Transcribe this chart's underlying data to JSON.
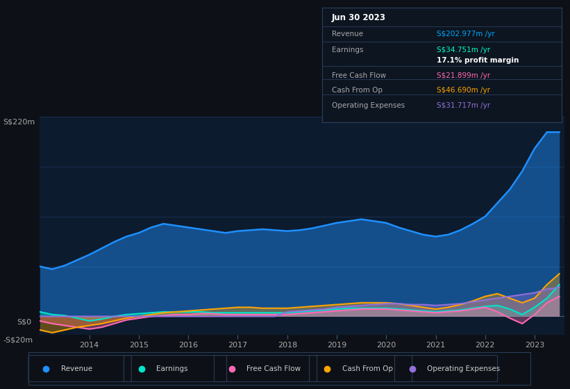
{
  "bg_color": "#0d1117",
  "plot_bg_color": "#0d1b2e",
  "grid_color": "#1e3a5f",
  "title_box": {
    "date": "Jun 30 2023",
    "rows": [
      {
        "label": "Revenue",
        "value": "S$202.977m /yr",
        "value_color": "#00aaff"
      },
      {
        "label": "Earnings",
        "value": "S$34.751m /yr",
        "value_color": "#00ffcc"
      },
      {
        "label": "",
        "value": "17.1% profit margin",
        "value_color": "#ffffff"
      },
      {
        "label": "Free Cash Flow",
        "value": "S$21.899m /yr",
        "value_color": "#ff69b4"
      },
      {
        "label": "Cash From Op",
        "value": "S$46.690m /yr",
        "value_color": "#ffa500"
      },
      {
        "label": "Operating Expenses",
        "value": "S$31.717m /yr",
        "value_color": "#9370db"
      }
    ]
  },
  "years": [
    2013.0,
    2013.25,
    2013.5,
    2013.75,
    2014.0,
    2014.25,
    2014.5,
    2014.75,
    2015.0,
    2015.25,
    2015.5,
    2015.75,
    2016.0,
    2016.25,
    2016.5,
    2016.75,
    2017.0,
    2017.25,
    2017.5,
    2017.75,
    2018.0,
    2018.25,
    2018.5,
    2018.75,
    2019.0,
    2019.25,
    2019.5,
    2019.75,
    2020.0,
    2020.25,
    2020.5,
    2020.75,
    2021.0,
    2021.25,
    2021.5,
    2021.75,
    2022.0,
    2022.25,
    2022.5,
    2022.75,
    2023.0,
    2023.25,
    2023.5
  ],
  "revenue": [
    55,
    52,
    56,
    62,
    68,
    75,
    82,
    88,
    92,
    98,
    102,
    100,
    98,
    96,
    94,
    92,
    94,
    95,
    96,
    95,
    94,
    95,
    97,
    100,
    103,
    105,
    107,
    105,
    103,
    98,
    94,
    90,
    88,
    90,
    95,
    102,
    110,
    125,
    140,
    160,
    185,
    203,
    203
  ],
  "earnings": [
    5,
    2,
    1,
    -2,
    -5,
    -3,
    0,
    2,
    3,
    4,
    5,
    5,
    5,
    5,
    4,
    4,
    4,
    4,
    4,
    4,
    4,
    5,
    6,
    7,
    8,
    9,
    9,
    9,
    9,
    8,
    7,
    6,
    5,
    6,
    7,
    9,
    11,
    12,
    8,
    2,
    10,
    20,
    35
  ],
  "free_cash_flow": [
    -5,
    -8,
    -10,
    -12,
    -14,
    -12,
    -8,
    -4,
    -2,
    0,
    1,
    2,
    2,
    3,
    3,
    2,
    2,
    2,
    2,
    2,
    2,
    3,
    4,
    5,
    6,
    7,
    8,
    8,
    8,
    7,
    6,
    5,
    4,
    5,
    6,
    8,
    10,
    5,
    -2,
    -8,
    2,
    15,
    22
  ],
  "cash_from_op": [
    -15,
    -18,
    -15,
    -12,
    -10,
    -8,
    -5,
    -2,
    0,
    2,
    4,
    5,
    6,
    7,
    8,
    9,
    10,
    10,
    9,
    9,
    9,
    10,
    11,
    12,
    13,
    14,
    15,
    15,
    15,
    14,
    12,
    10,
    8,
    10,
    13,
    17,
    22,
    25,
    20,
    15,
    20,
    35,
    47
  ],
  "operating_expenses": [
    0,
    0,
    0,
    0,
    0,
    0,
    0,
    0,
    0,
    0,
    0,
    0,
    0,
    0,
    0,
    0,
    0,
    0,
    0,
    0,
    5,
    6,
    7,
    8,
    10,
    11,
    12,
    13,
    14,
    14,
    13,
    13,
    12,
    13,
    14,
    16,
    18,
    20,
    22,
    24,
    26,
    30,
    32
  ],
  "revenue_color": "#1e90ff",
  "earnings_color": "#00e5cc",
  "free_cash_flow_color": "#ff69b4",
  "cash_from_op_color": "#ffa500",
  "operating_expenses_color": "#9370db",
  "ylim": [
    -20,
    220
  ],
  "xtick_years": [
    2014,
    2015,
    2016,
    2017,
    2018,
    2019,
    2020,
    2021,
    2022,
    2023
  ],
  "legend_labels": [
    "Revenue",
    "Earnings",
    "Free Cash Flow",
    "Cash From Op",
    "Operating Expenses"
  ],
  "legend_colors": [
    "#1e90ff",
    "#00e5cc",
    "#ff69b4",
    "#ffa500",
    "#9370db"
  ]
}
